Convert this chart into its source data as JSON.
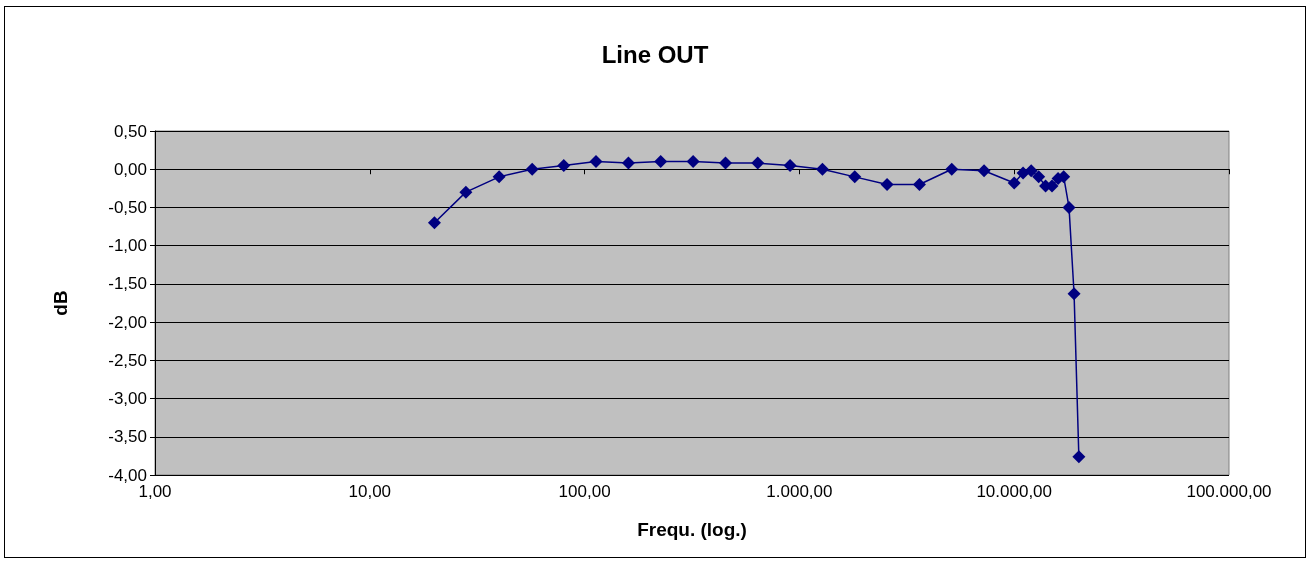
{
  "chart_data": {
    "type": "line",
    "title": "Line OUT",
    "xlabel": "Frequ. (log.)",
    "ylabel": "dB",
    "log": "x",
    "grid": "y",
    "marker": "diamond",
    "line_style": "solid",
    "xlim": [
      1,
      100000
    ],
    "xticks": [
      {
        "value": 1,
        "label": "1,00"
      },
      {
        "value": 10,
        "label": "10,00"
      },
      {
        "value": 100,
        "label": "100,00"
      },
      {
        "value": 1000,
        "label": "1.000,00"
      },
      {
        "value": 10000,
        "label": "10.000,00"
      },
      {
        "value": 100000,
        "label": "100.000,00"
      }
    ],
    "ylim": [
      -4,
      0.5
    ],
    "yticks": [
      {
        "value": -4,
        "label": "-4,00"
      },
      {
        "value": -3.5,
        "label": "-3,50"
      },
      {
        "value": -3,
        "label": "-3,00"
      },
      {
        "value": -2.5,
        "label": "-2,50"
      },
      {
        "value": -2,
        "label": "-2,00"
      },
      {
        "value": -1.5,
        "label": "-1,50"
      },
      {
        "value": -1,
        "label": "-1,00"
      },
      {
        "value": -0.5,
        "label": "-0,50"
      },
      {
        "value": 0,
        "label": "0,00"
      },
      {
        "value": 0.5,
        "label": "0,50"
      }
    ],
    "x": [
      20,
      28,
      40,
      57,
      80,
      113,
      160,
      226,
      320,
      453,
      640,
      905,
      1280,
      1810,
      2560,
      3620,
      5120,
      7240,
      10000,
      11000,
      12000,
      13000,
      14000,
      15000,
      16000,
      17000,
      18000,
      19000,
      20000
    ],
    "series": [
      {
        "color": "#000080",
        "values": [
          -0.7,
          -0.3,
          -0.1,
          0.0,
          0.05,
          0.1,
          0.08,
          0.1,
          0.1,
          0.08,
          0.08,
          0.05,
          0.0,
          -0.1,
          -0.2,
          -0.2,
          0.0,
          -0.02,
          -0.18,
          -0.05,
          -0.02,
          -0.1,
          -0.22,
          -0.22,
          -0.12,
          -0.1,
          -0.5,
          -1.63,
          -3.76
        ]
      }
    ]
  }
}
